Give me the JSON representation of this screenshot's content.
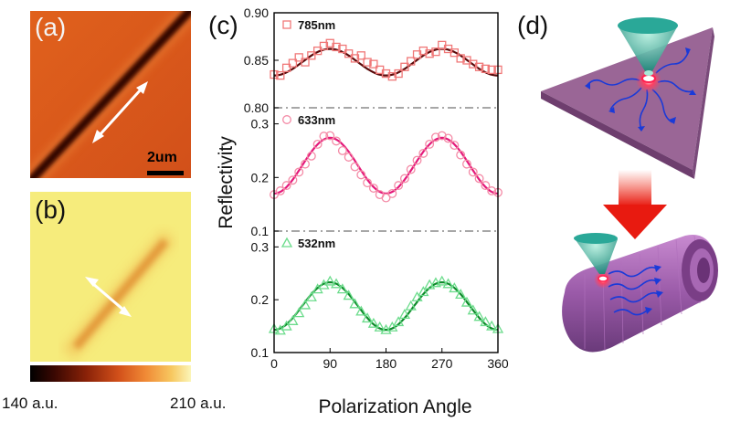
{
  "panels": {
    "a": {
      "label": "(a)",
      "scalebar_text": "2um"
    },
    "b": {
      "label": "(b)"
    },
    "c": {
      "label": "(c)"
    },
    "d": {
      "label": "(d)"
    }
  },
  "colorbar": {
    "min_label": "140 a.u.",
    "max_label": "210 a.u."
  },
  "colors": {
    "map_a": "#d85a18",
    "map_b": "#f6ec7a",
    "s785": "#f07878",
    "s633": "#f48aa6",
    "s532": "#6cdc8c",
    "fit785": "#5a0a0a",
    "fit633": "#e4187a",
    "fit532": "#0e8a2a",
    "membrane": "#8a5a86",
    "arrow_red": "#f03020"
  },
  "chart_data": {
    "type": "scatter",
    "xlabel": "Polarization Angle",
    "ylabel": "Reflectivity",
    "xlim": [
      0,
      360
    ],
    "xticks": [
      "0",
      "90",
      "180",
      "270",
      "360"
    ],
    "subplots": [
      {
        "name": "785nm",
        "marker": "square",
        "ylim": [
          0.8,
          0.9
        ],
        "yticks": [
          "0.80",
          "0.85",
          "0.90"
        ],
        "x": [
          0,
          10,
          20,
          30,
          40,
          50,
          60,
          70,
          80,
          90,
          100,
          110,
          120,
          130,
          140,
          150,
          160,
          170,
          180,
          190,
          200,
          210,
          220,
          230,
          240,
          250,
          260,
          270,
          280,
          290,
          300,
          310,
          320,
          330,
          340,
          350,
          360
        ],
        "y": [
          0.835,
          0.834,
          0.842,
          0.847,
          0.853,
          0.848,
          0.855,
          0.86,
          0.865,
          0.868,
          0.864,
          0.862,
          0.857,
          0.852,
          0.855,
          0.848,
          0.846,
          0.84,
          0.836,
          0.833,
          0.836,
          0.843,
          0.849,
          0.856,
          0.86,
          0.857,
          0.859,
          0.866,
          0.862,
          0.858,
          0.852,
          0.85,
          0.846,
          0.843,
          0.841,
          0.84,
          0.84
        ],
        "fit": {
          "mean": 0.848,
          "amplitude": 0.014
        }
      },
      {
        "name": "633nm",
        "marker": "circle",
        "ylim": [
          0.1,
          0.33
        ],
        "yticks": [
          "0.1",
          "0.2",
          "0.3"
        ],
        "x": [
          0,
          10,
          20,
          30,
          40,
          50,
          60,
          70,
          80,
          90,
          100,
          110,
          120,
          130,
          140,
          150,
          160,
          170,
          180,
          190,
          200,
          210,
          220,
          230,
          240,
          250,
          260,
          270,
          280,
          290,
          300,
          310,
          320,
          330,
          340,
          350,
          360
        ],
        "y": [
          0.168,
          0.175,
          0.185,
          0.195,
          0.21,
          0.225,
          0.24,
          0.262,
          0.277,
          0.278,
          0.268,
          0.25,
          0.238,
          0.22,
          0.205,
          0.19,
          0.18,
          0.168,
          0.162,
          0.17,
          0.185,
          0.198,
          0.215,
          0.232,
          0.245,
          0.262,
          0.275,
          0.278,
          0.273,
          0.26,
          0.242,
          0.225,
          0.21,
          0.198,
          0.185,
          0.175,
          0.172
        ],
        "fit": {
          "mean": 0.222,
          "amplitude": 0.052
        }
      },
      {
        "name": "532nm",
        "marker": "triangle",
        "ylim": [
          0.1,
          0.33
        ],
        "yticks": [
          "0.1",
          "0.2",
          "0.3"
        ],
        "x": [
          0,
          10,
          20,
          30,
          40,
          50,
          60,
          70,
          80,
          90,
          100,
          110,
          120,
          130,
          140,
          150,
          160,
          170,
          180,
          190,
          200,
          210,
          220,
          230,
          240,
          250,
          260,
          270,
          280,
          290,
          300,
          310,
          320,
          330,
          340,
          350,
          360
        ],
        "y": [
          0.145,
          0.142,
          0.15,
          0.16,
          0.175,
          0.19,
          0.205,
          0.22,
          0.228,
          0.235,
          0.23,
          0.22,
          0.208,
          0.192,
          0.178,
          0.165,
          0.155,
          0.148,
          0.143,
          0.148,
          0.158,
          0.172,
          0.188,
          0.205,
          0.215,
          0.228,
          0.232,
          0.235,
          0.23,
          0.222,
          0.21,
          0.195,
          0.18,
          0.168,
          0.158,
          0.15,
          0.145
        ],
        "fit": {
          "mean": 0.188,
          "amplitude": 0.045
        }
      }
    ]
  }
}
